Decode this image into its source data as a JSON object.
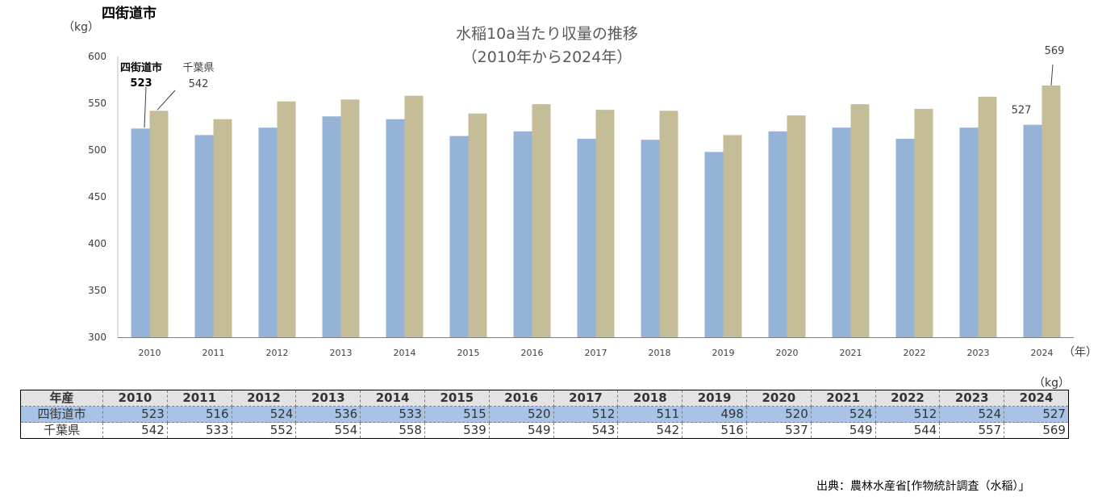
{
  "page": {
    "corner_title": "四街道市",
    "source": "出典：農林水産省[作物統計調査（水稲）」",
    "table_unit": "（kg）"
  },
  "colors": {
    "yotsukaido": "#95b3d7",
    "chiba": "#c4bd97",
    "table_header_bg": "#e3e3e3",
    "table_row_bg": "#a8c3e5"
  },
  "chart_data": {
    "type": "bar",
    "title": "水稲10a当たり収量の推移",
    "subtitle": "（2010年から2024年）",
    "ylabel": "（kg）",
    "xlabel": "（年）",
    "ylim": [
      300,
      600
    ],
    "yticks": [
      300,
      350,
      400,
      450,
      500,
      550,
      600
    ],
    "categories": [
      "2010",
      "2011",
      "2012",
      "2013",
      "2014",
      "2015",
      "2016",
      "2017",
      "2018",
      "2019",
      "2020",
      "2021",
      "2022",
      "2023",
      "2024"
    ],
    "series": [
      {
        "name": "四街道市",
        "color": "#95b3d7",
        "values": [
          523,
          516,
          524,
          536,
          533,
          515,
          520,
          512,
          511,
          498,
          520,
          524,
          512,
          524,
          527
        ]
      },
      {
        "name": "千葉県",
        "color": "#c4bd97",
        "values": [
          542,
          533,
          552,
          554,
          558,
          539,
          549,
          543,
          542,
          516,
          537,
          549,
          544,
          557,
          569
        ]
      }
    ],
    "annotations": [
      {
        "series": 0,
        "index": 0,
        "label": "四街道市",
        "value": "523"
      },
      {
        "series": 1,
        "index": 0,
        "label": "千葉県",
        "value": "542"
      },
      {
        "series": 0,
        "index": 14,
        "value": "527"
      },
      {
        "series": 1,
        "index": 14,
        "value": "569"
      }
    ],
    "grid": false,
    "legend": "none"
  },
  "table": {
    "header_label": "年産",
    "years": [
      "2010",
      "2011",
      "2012",
      "2013",
      "2014",
      "2015",
      "2016",
      "2017",
      "2018",
      "2019",
      "2020",
      "2021",
      "2022",
      "2023",
      "2024"
    ],
    "rows": [
      {
        "label": "四街道市",
        "values": [
          "523",
          "516",
          "524",
          "536",
          "533",
          "515",
          "520",
          "512",
          "511",
          "498",
          "520",
          "524",
          "512",
          "524",
          "527"
        ]
      },
      {
        "label": "千葉県",
        "values": [
          "542",
          "533",
          "552",
          "554",
          "558",
          "539",
          "549",
          "543",
          "542",
          "516",
          "537",
          "549",
          "544",
          "557",
          "569"
        ]
      }
    ]
  }
}
